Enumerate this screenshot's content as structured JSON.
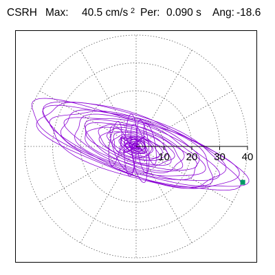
{
  "header": {
    "station": "CSRH",
    "max_label": "Max:",
    "max_value": "40.5 cm/s",
    "max_unit_exp": "2",
    "per_label": "Per:",
    "per_value": "0.090 s",
    "ang_label": "Ang:",
    "ang_value": "-18.6"
  },
  "colors": {
    "trace": "#8a00d4",
    "peak_marker": "#009966",
    "grid": "#555555",
    "axis": "#000000"
  },
  "chart_data": {
    "type": "scatter",
    "subtype": "polar orbit plot",
    "title": "CSRH Max: 40.5 cm/s2 Per: 0.090 s Ang: -18.6",
    "rlim": [
      0,
      40
    ],
    "rings": [
      10,
      20,
      30,
      40
    ],
    "radial_tick_labels": [
      "10",
      "20",
      "30",
      "40"
    ],
    "spokes_deg": [
      0,
      30,
      60,
      90,
      120,
      150,
      180,
      210,
      240,
      270,
      300,
      330
    ],
    "major_axis_angle_deg": -18.6,
    "max_amplitude": 40.5,
    "peak_point": {
      "x": 38.3,
      "y": -12.9
    },
    "series": [
      {
        "values": [
          {
            "a": 0.3,
            "b": 0.25,
            "phase": 0
          },
          {
            "a": 1.2,
            "b": 0.9,
            "phase": 0.4
          },
          {
            "a": 2.5,
            "b": 1.8,
            "phase": 1.1
          },
          {
            "a": 4.0,
            "b": 2.2,
            "phase": 2.0
          },
          {
            "a": 6.0,
            "b": 2.8,
            "phase": 0.8
          },
          {
            "a": 8.5,
            "b": 3.4,
            "phase": 1.7
          },
          {
            "a": 11.0,
            "b": 4.0,
            "phase": 2.9
          },
          {
            "a": 14.0,
            "b": 5.2,
            "phase": 0.3
          },
          {
            "a": 17.5,
            "b": 6.0,
            "phase": 1.5
          },
          {
            "a": 21.0,
            "b": 6.8,
            "phase": 2.4
          },
          {
            "a": 25.0,
            "b": 8.0,
            "phase": 0.9
          },
          {
            "a": 29.0,
            "b": 9.0,
            "phase": 2.1
          },
          {
            "a": 33.5,
            "b": 10.0,
            "phase": 0.5
          },
          {
            "a": 37.0,
            "b": 10.5,
            "phase": 1.9
          },
          {
            "a": 40.5,
            "b": 9.5,
            "phase": 0.0
          },
          {
            "a": 36.0,
            "b": 11.0,
            "phase": 2.7
          },
          {
            "a": 30.0,
            "b": 9.5,
            "phase": 1.3
          },
          {
            "a": 24.0,
            "b": 8.5,
            "phase": 2.2
          },
          {
            "a": 18.0,
            "b": 7.0,
            "phase": 0.6
          },
          {
            "a": 13.0,
            "b": 5.5,
            "phase": 1.6
          },
          {
            "a": 9.0,
            "b": 4.5,
            "phase": 2.6
          },
          {
            "a": 6.0,
            "b": 3.5,
            "phase": 0.2
          },
          {
            "a": 3.5,
            "b": 2.5,
            "phase": 1.4
          },
          {
            "a": 1.5,
            "b": 1.0,
            "phase": 2.3
          }
        ]
      }
    ],
    "lobes": [
      {
        "amp": 11.0,
        "width": 2.2,
        "angle_deg": 87,
        "offset_x": -2.0,
        "offset_y": 0.5
      },
      {
        "amp": 9.5,
        "width": 2.0,
        "angle_deg": 95,
        "offset_x": 2.5,
        "offset_y": 0.0
      },
      {
        "amp": 10.5,
        "width": 2.5,
        "angle_deg": -82,
        "offset_x": 1.0,
        "offset_y": -2.5
      },
      {
        "amp": 9.0,
        "width": 3.0,
        "angle_deg": -70,
        "offset_x": -5.0,
        "offset_y": -1.0
      },
      {
        "amp": 8.0,
        "width": 2.0,
        "angle_deg": 80,
        "offset_x": -7.5,
        "offset_y": 1.0
      },
      {
        "amp": 7.5,
        "width": 1.8,
        "angle_deg": 100,
        "offset_x": 5.0,
        "offset_y": 1.0
      }
    ]
  }
}
